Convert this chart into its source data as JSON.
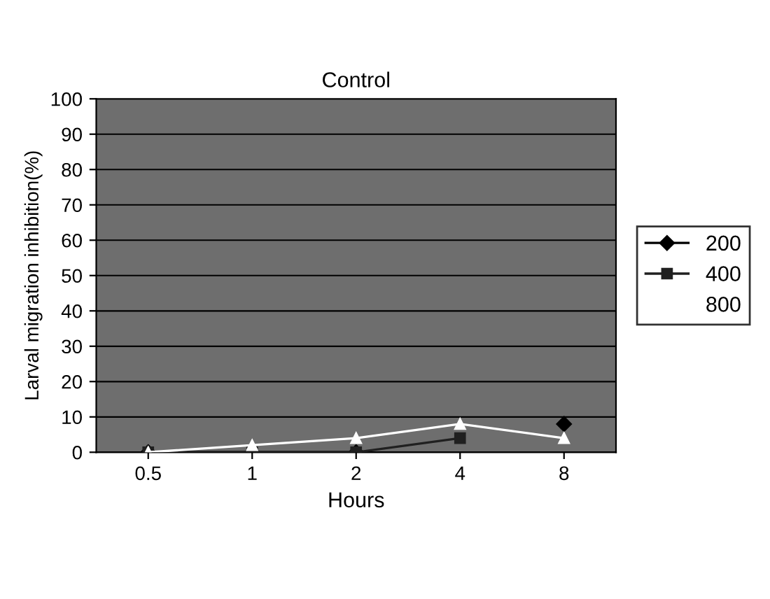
{
  "chart_data": {
    "type": "line",
    "title": "Control",
    "xlabel": "Hours",
    "ylabel": "Larval migration inhibition(%)",
    "categories": [
      "0.5",
      "1",
      "2",
      "4",
      "8"
    ],
    "series": [
      {
        "name": "200",
        "color": "#000000",
        "marker": "diamond",
        "values": [
          0,
          0,
          0,
          null,
          8
        ]
      },
      {
        "name": "400",
        "color": "#202020",
        "marker": "square",
        "values": [
          0,
          0,
          0,
          4,
          null
        ]
      },
      {
        "name": "800",
        "color": "#ffffff",
        "marker": "triangle",
        "values": [
          0,
          2,
          4,
          8,
          4
        ]
      }
    ],
    "ylim": [
      0,
      100
    ],
    "yticks": [
      0,
      10,
      20,
      30,
      40,
      50,
      60,
      70,
      80,
      90,
      100
    ],
    "grid": "y",
    "legend": "right"
  }
}
